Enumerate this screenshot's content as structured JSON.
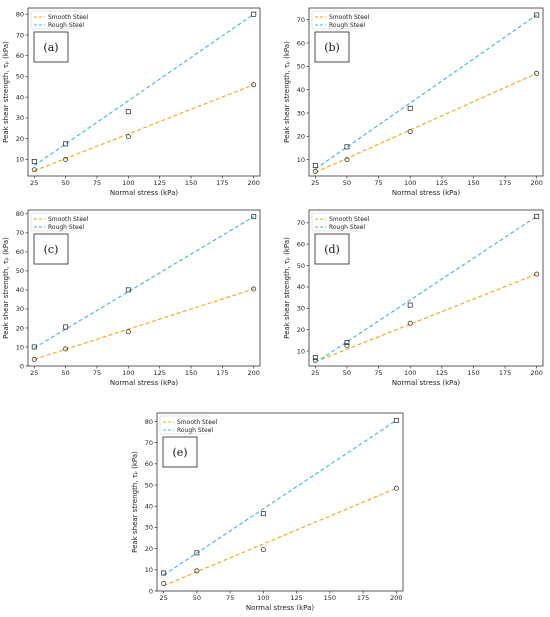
{
  "chart_data": [
    {
      "type": "line",
      "panel_label": "(a)",
      "xlabel": "Normal stress (kPa)",
      "ylabel": "Peak shear strength, τₚ (kPa)",
      "xlim": [
        20,
        205
      ],
      "ylim": [
        2,
        83
      ],
      "xticks": [
        25,
        50,
        75,
        100,
        125,
        150,
        175,
        200
      ],
      "yticks": [
        10,
        20,
        30,
        40,
        50,
        60,
        70,
        80
      ],
      "legend_position": "top-left",
      "series": [
        {
          "name": "Smooth Steel",
          "color": "#ff9f10",
          "marker": "circle",
          "x": [
            25,
            50,
            100,
            200
          ],
          "y": [
            5,
            10,
            21,
            46
          ],
          "fit": [
            4.5,
            46
          ]
        },
        {
          "name": "Rough Steel",
          "color": "#3cb6e3",
          "marker": "square",
          "x": [
            25,
            50,
            100,
            200
          ],
          "y": [
            9,
            17.5,
            33,
            80
          ],
          "fit": [
            7,
            80
          ]
        }
      ]
    },
    {
      "type": "line",
      "panel_label": "(b)",
      "xlabel": "Normal stress (kPa)",
      "ylabel": "Peak shear strength, τₚ (kPa)",
      "xlim": [
        20,
        205
      ],
      "ylim": [
        3,
        75
      ],
      "xticks": [
        25,
        50,
        75,
        100,
        125,
        150,
        175,
        200
      ],
      "yticks": [
        10,
        20,
        30,
        40,
        50,
        60,
        70
      ],
      "legend_position": "top-left",
      "series": [
        {
          "name": "Smooth Steel",
          "color": "#ff9f10",
          "marker": "circle",
          "x": [
            25,
            50,
            100,
            200
          ],
          "y": [
            5,
            10,
            22,
            47
          ],
          "fit": [
            4.5,
            47
          ]
        },
        {
          "name": "Rough Steel",
          "color": "#3cb6e3",
          "marker": "square",
          "x": [
            25,
            50,
            100,
            200
          ],
          "y": [
            7.5,
            15.5,
            32,
            72
          ],
          "fit": [
            6,
            72
          ]
        }
      ]
    },
    {
      "type": "line",
      "panel_label": "(c)",
      "xlabel": "Normal stress (kPa)",
      "ylabel": "Peak shear strength, τₚ (kPa)",
      "xlim": [
        20,
        205
      ],
      "ylim": [
        0,
        82
      ],
      "xticks": [
        25,
        50,
        75,
        100,
        125,
        150,
        175,
        200
      ],
      "yticks": [
        0,
        10,
        20,
        30,
        40,
        50,
        60,
        70,
        80
      ],
      "legend_position": "top-left",
      "series": [
        {
          "name": "Smooth Steel",
          "color": "#ff9f10",
          "marker": "circle",
          "x": [
            25,
            50,
            100,
            200
          ],
          "y": [
            3.5,
            9,
            18,
            40.5
          ],
          "fit": [
            3.5,
            40.5
          ]
        },
        {
          "name": "Rough Steel",
          "color": "#3cb6e3",
          "marker": "square",
          "x": [
            25,
            50,
            100,
            200
          ],
          "y": [
            10,
            20.5,
            40,
            78.5
          ],
          "fit": [
            9.5,
            78.5
          ]
        }
      ]
    },
    {
      "type": "line",
      "panel_label": "(d)",
      "xlabel": "Normal stress (kPa)",
      "ylabel": "Peak shear strength, τₚ (kPa)",
      "xlim": [
        20,
        205
      ],
      "ylim": [
        3,
        76
      ],
      "xticks": [
        25,
        50,
        75,
        100,
        125,
        150,
        175,
        200
      ],
      "yticks": [
        10,
        20,
        30,
        40,
        50,
        60,
        70
      ],
      "legend_position": "top-left",
      "series": [
        {
          "name": "Smooth Steel",
          "color": "#ff9f10",
          "marker": "circle",
          "x": [
            25,
            50,
            100,
            200
          ],
          "y": [
            5.5,
            12.5,
            23,
            46
          ],
          "fit": [
            5,
            46
          ]
        },
        {
          "name": "Rough Steel",
          "color": "#3cb6e3",
          "marker": "square",
          "x": [
            25,
            50,
            100,
            200
          ],
          "y": [
            7,
            14,
            31.5,
            73
          ],
          "fit": [
            4.5,
            73
          ]
        }
      ]
    },
    {
      "type": "line",
      "panel_label": "(e)",
      "xlabel": "Normal stress (kPa)",
      "ylabel": "Peak shear strength, τₚ (kPa)",
      "xlim": [
        20,
        205
      ],
      "ylim": [
        0,
        84
      ],
      "xticks": [
        25,
        50,
        75,
        100,
        125,
        150,
        175,
        200
      ],
      "yticks": [
        0,
        10,
        20,
        30,
        40,
        50,
        60,
        70,
        80
      ],
      "legend_position": "top-left",
      "series": [
        {
          "name": "Smooth Steel",
          "color": "#ff9f10",
          "marker": "circle",
          "x": [
            25,
            50,
            100,
            200
          ],
          "y": [
            3.5,
            9.5,
            19.5,
            48.5
          ],
          "fit": [
            2.5,
            48.5
          ]
        },
        {
          "name": "Rough Steel",
          "color": "#3cb6e3",
          "marker": "square",
          "x": [
            25,
            50,
            100,
            200
          ],
          "y": [
            8.5,
            18,
            36.5,
            80.5
          ],
          "fit": [
            7.5,
            80.5
          ]
        }
      ]
    }
  ]
}
